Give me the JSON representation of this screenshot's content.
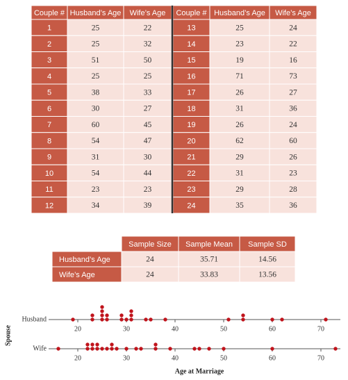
{
  "couples_table": {
    "header": [
      "Couple #",
      "Husband’s Age",
      "Wife’s Age"
    ],
    "rows": [
      [
        1,
        25,
        22
      ],
      [
        2,
        25,
        32
      ],
      [
        3,
        51,
        50
      ],
      [
        4,
        25,
        25
      ],
      [
        5,
        38,
        33
      ],
      [
        6,
        30,
        27
      ],
      [
        7,
        60,
        45
      ],
      [
        8,
        54,
        47
      ],
      [
        9,
        31,
        30
      ],
      [
        10,
        54,
        44
      ],
      [
        11,
        23,
        23
      ],
      [
        12,
        34,
        39
      ],
      [
        13,
        25,
        24
      ],
      [
        14,
        23,
        22
      ],
      [
        15,
        19,
        16
      ],
      [
        16,
        71,
        73
      ],
      [
        17,
        26,
        27
      ],
      [
        18,
        31,
        36
      ],
      [
        19,
        26,
        24
      ],
      [
        20,
        62,
        60
      ],
      [
        21,
        29,
        26
      ],
      [
        22,
        31,
        23
      ],
      [
        23,
        29,
        28
      ],
      [
        24,
        35,
        36
      ]
    ]
  },
  "summary_table": {
    "header": [
      "Sample Size",
      "Sample Mean",
      "Sample SD"
    ],
    "rows": [
      {
        "label": "Husband’s Age",
        "values": [
          24,
          35.71,
          14.56
        ]
      },
      {
        "label": "Wife’s Age",
        "values": [
          24,
          33.83,
          13.56
        ]
      }
    ]
  },
  "dot_plot": {
    "series_labels": [
      "Husband",
      "Wife"
    ],
    "x_label": "Age at Marriage",
    "y_label": "Spouse",
    "xlim": [
      14,
      74
    ],
    "xticks": [
      20,
      30,
      40,
      50,
      60,
      70
    ],
    "color": "#c0141c"
  }
}
